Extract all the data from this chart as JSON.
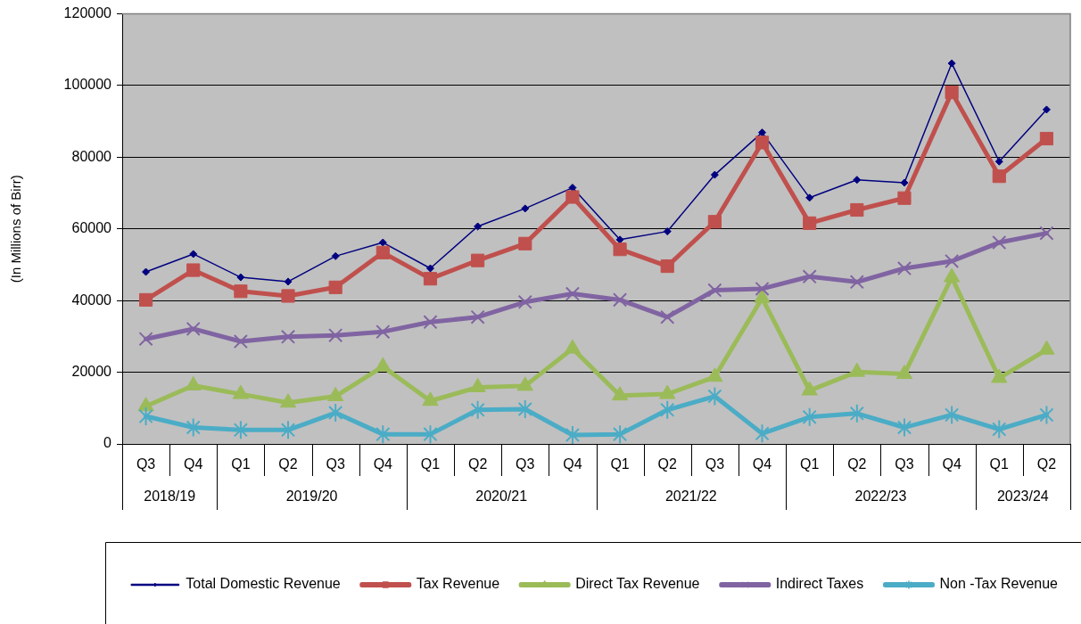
{
  "chart_data": {
    "type": "line",
    "ylabel": "(In Millions of Birr)",
    "categories": [
      "Q3",
      "Q4",
      "Q1",
      "Q2",
      "Q3",
      "Q4",
      "Q1",
      "Q2",
      "Q3",
      "Q4",
      "Q1",
      "Q2",
      "Q3",
      "Q4",
      "Q1",
      "Q2",
      "Q3",
      "Q4",
      "Q1",
      "Q2"
    ],
    "annotations": [
      "2018/19",
      "2019/20",
      "2020/21",
      "2021/22",
      "2022/23",
      "2023/24"
    ],
    "series": [
      {
        "name": "Total Domestic Revenue",
        "color": "#000080",
        "marker": "diamond",
        "values": [
          48000,
          53000,
          46500,
          45300,
          52400,
          56200,
          49000,
          60700,
          65700,
          71500,
          57000,
          59300,
          75100,
          86900,
          68700,
          73700,
          72900,
          106200,
          78800,
          93300
        ]
      },
      {
        "name": "Tax Revenue",
        "color": "#c0504d",
        "marker": "square",
        "values": [
          40200,
          48500,
          42600,
          41300,
          43700,
          53400,
          46100,
          51200,
          55900,
          68900,
          54300,
          49600,
          62000,
          84100,
          61600,
          65300,
          68600,
          98100,
          74700,
          85200
        ]
      },
      {
        "name": "Direct Tax Revenue",
        "color": "#9bbb59",
        "marker": "triangle",
        "values": [
          10500,
          16300,
          13900,
          11500,
          13300,
          21600,
          12000,
          15800,
          16200,
          26600,
          13500,
          13900,
          18700,
          40700,
          14900,
          20100,
          19500,
          46500,
          18400,
          26300
        ]
      },
      {
        "name": "Indirect Taxes",
        "color": "#8064a2",
        "marker": "cross",
        "values": [
          29300,
          32100,
          28600,
          29900,
          30300,
          31300,
          34000,
          35400,
          39600,
          41900,
          40200,
          35400,
          42900,
          43300,
          46700,
          45200,
          49000,
          51000,
          56200,
          58800
        ]
      },
      {
        "name": "Non -Tax Revenue",
        "color": "#4bacc6",
        "marker": "star",
        "values": [
          7700,
          4600,
          3900,
          3900,
          8700,
          2700,
          2700,
          9500,
          9700,
          2500,
          2700,
          9500,
          13300,
          2900,
          7500,
          8500,
          4600,
          8100,
          4100,
          8100
        ]
      }
    ],
    "ylim": [
      0,
      120000
    ],
    "yticks": [
      0,
      20000,
      40000,
      60000,
      80000,
      100000,
      120000
    ],
    "grid": "y",
    "legend": "bottom"
  }
}
